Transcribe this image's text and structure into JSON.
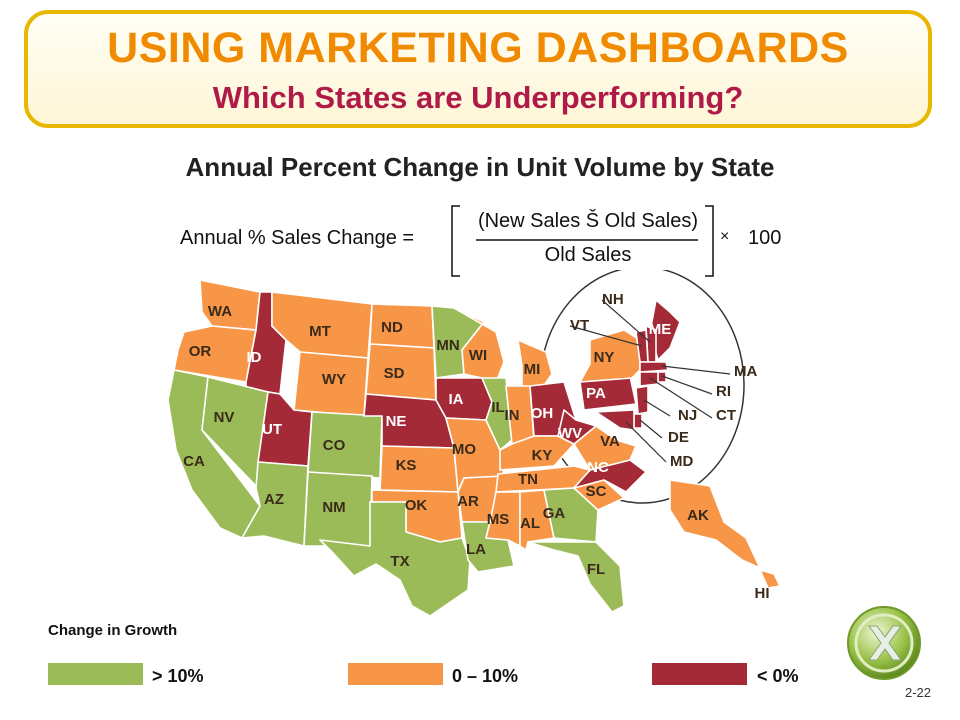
{
  "header": {
    "title": "USING MARKETING DASHBOARDS",
    "subtitle": "Which States are Underperforming?"
  },
  "chart_title": "Annual Percent Change in Unit Volume by State",
  "formula": {
    "lhs": "Annual % Sales Change =",
    "numerator": "(New Sales Š Old Sales)",
    "denominator": "Old Sales",
    "multiply": "×",
    "factor": "100"
  },
  "colors": {
    "growth_over_10": "#9bbb59",
    "growth_0_10": "#f79646",
    "growth_negative": "#a52a38",
    "title_border": "#e8b800",
    "title_text": "#f08a00",
    "subtitle_text": "#b01a48"
  },
  "legend": {
    "title": "Change in Growth",
    "items": [
      {
        "label": "> 10%",
        "category": "green"
      },
      {
        "label": "0 –  10%",
        "category": "orange"
      },
      {
        "label": "< 0%",
        "category": "red"
      }
    ]
  },
  "states": {
    "WA": "orange",
    "OR": "orange",
    "CA": "green",
    "ID": "red",
    "NV": "green",
    "MT": "orange",
    "WY": "orange",
    "UT": "red",
    "AZ": "green",
    "CO": "green",
    "NM": "green",
    "ND": "orange",
    "SD": "orange",
    "NE": "red",
    "KS": "orange",
    "OK": "orange",
    "TX": "green",
    "MN": "green",
    "IA": "red",
    "MO": "orange",
    "AR": "orange",
    "LA": "green",
    "WI": "orange",
    "IL": "green",
    "MI": "orange",
    "IN": "orange",
    "OH": "red",
    "KY": "orange",
    "TN": "orange",
    "MS": "orange",
    "AL": "orange",
    "GA": "green",
    "FL": "green",
    "SC": "orange",
    "NC": "red",
    "VA": "orange",
    "WV": "red",
    "PA": "red",
    "NY": "orange",
    "ME": "red",
    "NH": "red",
    "VT": "red",
    "MA": "red",
    "RI": "red",
    "CT": "red",
    "NJ": "red",
    "DE": "red",
    "MD": "red",
    "AK": "orange",
    "HI": "orange"
  },
  "callouts": [
    "NH",
    "VT",
    "MA",
    "RI",
    "CT",
    "NJ",
    "DE",
    "MD"
  ],
  "page_number": "2-22"
}
